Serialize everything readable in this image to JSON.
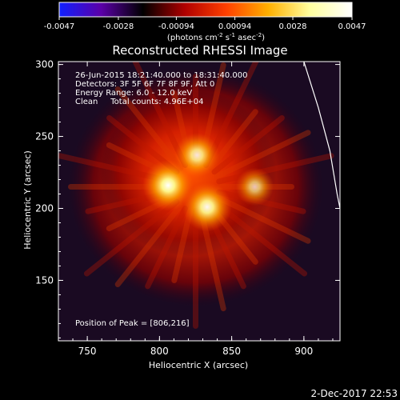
{
  "colorbar": {
    "ticks": [
      "-0.0047",
      "-0.0028",
      "-0.00094",
      "0.00094",
      "0.0028",
      "0.0047"
    ],
    "tick_values": [
      -0.0047,
      -0.0028,
      -0.00094,
      0.00094,
      0.0028,
      0.0047
    ],
    "range": [
      -0.0047,
      0.0047
    ],
    "colors": [
      "#1020ff",
      "#5b00a8",
      "#000000",
      "#b00000",
      "#ff4000",
      "#ffb000",
      "#ffffa0",
      "#ffffff"
    ]
  },
  "chart_data": {
    "type": "heatmap",
    "title": "Reconstructed RHESSI Image",
    "xlabel": "Heliocentric X (arcsec)",
    "ylabel": "Heliocentric Y (arcsec)",
    "xlim": [
      730,
      925
    ],
    "ylim": [
      108,
      302
    ],
    "x_ticks": [
      750,
      800,
      850,
      900
    ],
    "y_ticks": [
      150,
      200,
      250,
      300
    ],
    "sources": [
      {
        "x": 806,
        "y": 216,
        "rel_intensity": 1.0
      },
      {
        "x": 833,
        "y": 201,
        "rel_intensity": 0.93
      },
      {
        "x": 826,
        "y": 237,
        "rel_intensity": 0.78
      },
      {
        "x": 866,
        "y": 215,
        "rel_intensity": 0.55
      }
    ],
    "limb_line": [
      [
        900,
        302
      ],
      [
        910,
        270
      ],
      [
        918,
        240
      ],
      [
        923,
        210
      ],
      [
        925,
        200
      ]
    ],
    "annotations": [
      "26-Jun-2015 18:21:40.000 to 18:31:40.000",
      "Detectors: 3F 5F 6F 7F 8F 9F, Att 0",
      "Energy Range: 6.0 - 12.0 keV",
      "Clean     Total counts: 4.96E+04"
    ],
    "peak_text": "Position of Peak = [806,216]",
    "grid": false
  },
  "footer": {
    "timestamp": "2-Dec-2017 22:53"
  }
}
